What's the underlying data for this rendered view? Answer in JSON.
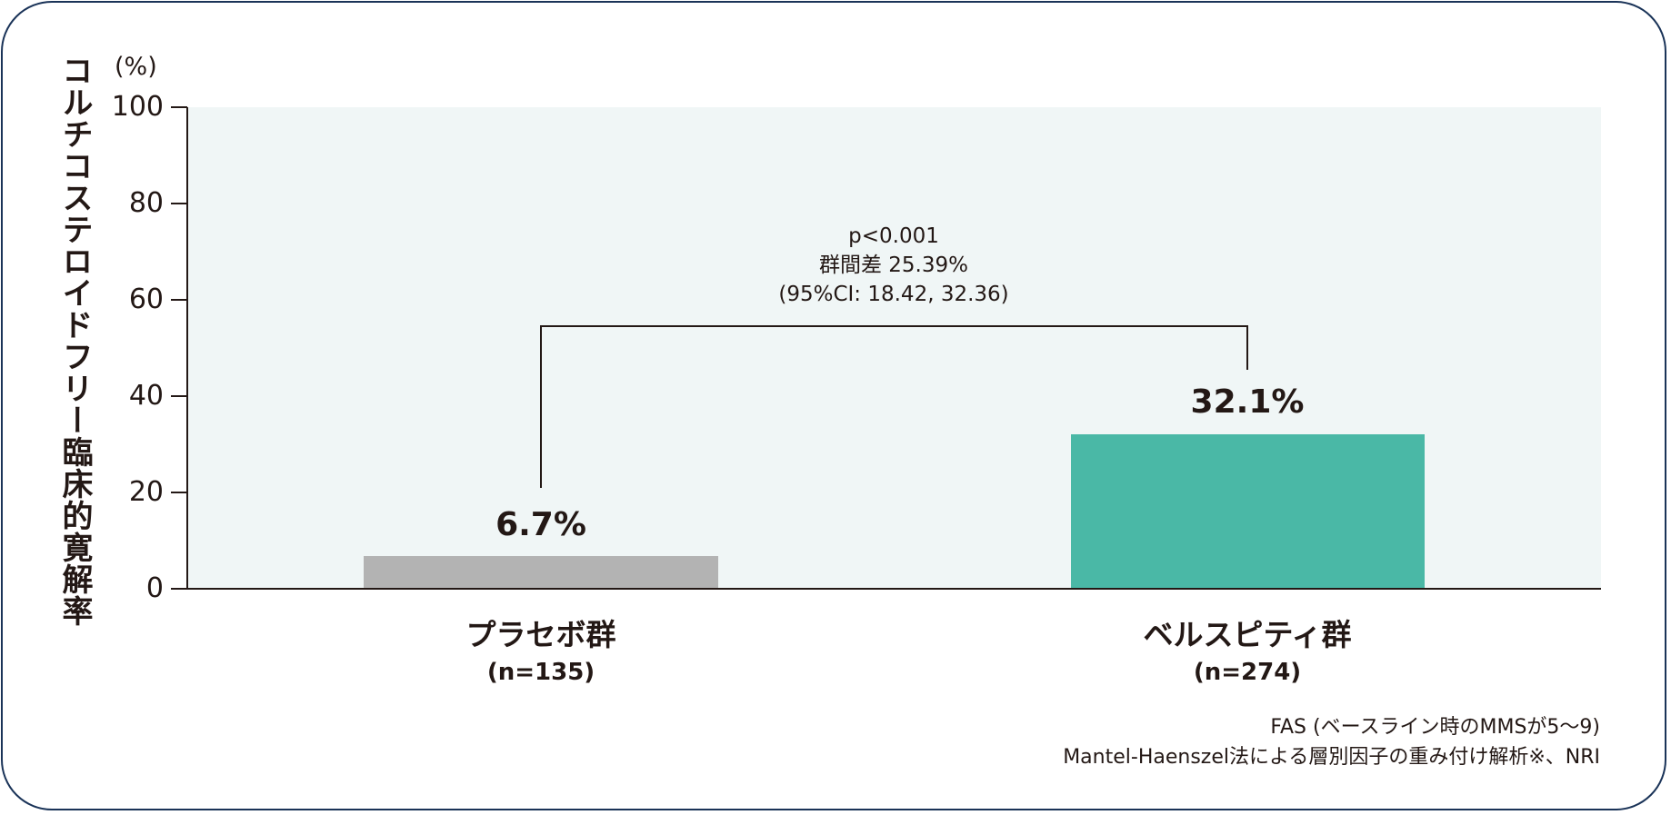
{
  "chart_data": {
    "type": "bar",
    "title": "",
    "ylabel": "コルチコステロイドフリー臨床的寛解率",
    "yunit": "(%)",
    "xlabel": "",
    "ylim": [
      0,
      100
    ],
    "yticks": [
      "0",
      "20",
      "40",
      "60",
      "80",
      "100"
    ],
    "grid": false,
    "categories": [
      "プラセボ群",
      "ベルスピティ群"
    ],
    "category_n": [
      "(n=135)",
      "(n=274)"
    ],
    "values": [
      6.7,
      32.1
    ],
    "value_labels": [
      "6.7%",
      "32.1%"
    ],
    "colors": [
      "#b3b3b3",
      "#4ab8a6"
    ],
    "annotation": {
      "p_value": "p<0.001",
      "difference": "群間差 25.39%",
      "ci": "(95%CI: 18.42, 32.36)"
    },
    "footnotes": [
      "FAS (ベースライン時のMMSが5～9)",
      "Mantel-Haenszel法による層別因子の重み付け解析※、NRI"
    ]
  }
}
